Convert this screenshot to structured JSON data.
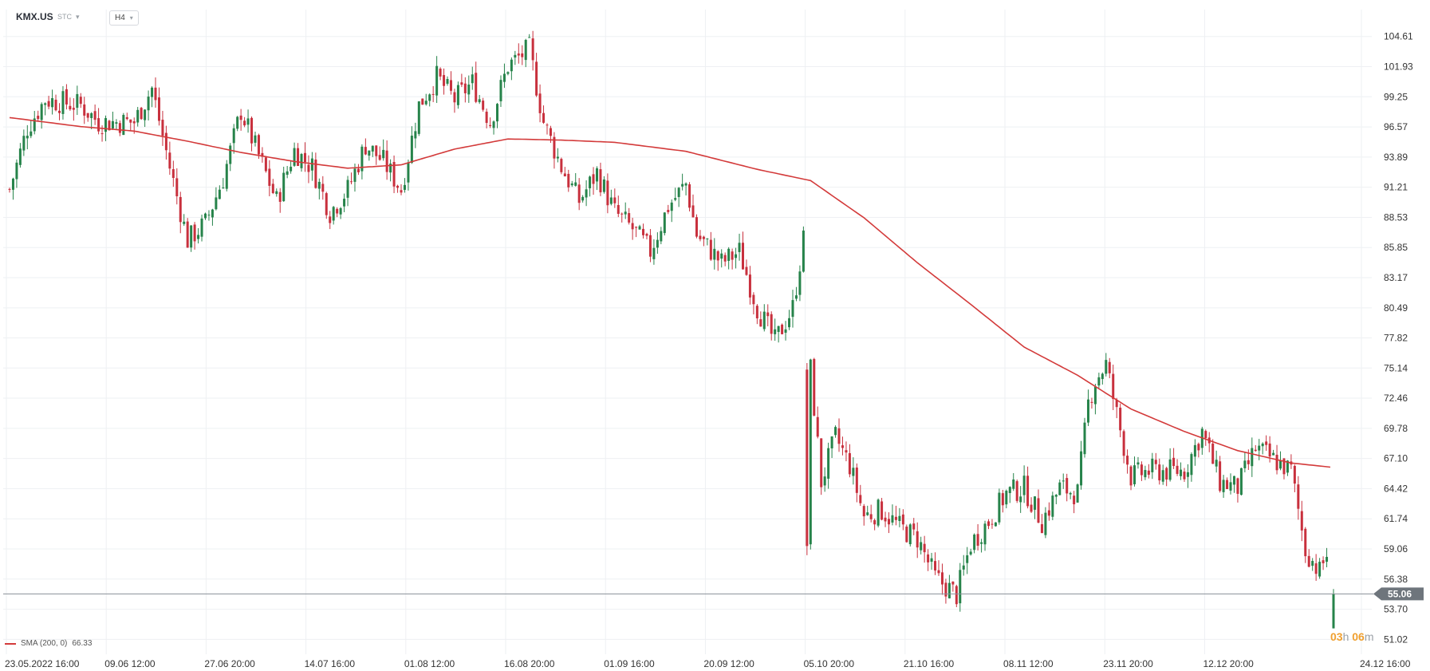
{
  "header": {
    "symbol": "KMX.US",
    "source": "STC",
    "timeframe": "H4"
  },
  "legend": {
    "label": "SMA (200, 0)",
    "value": "66.33"
  },
  "countdown": {
    "hours": "03",
    "h_unit": "h",
    "minutes": "06",
    "m_unit": "m"
  },
  "colors": {
    "up": "#26834a",
    "down": "#c8303d",
    "sma": "#d33a3a",
    "grid": "#eef0f3",
    "price_line": "#8a9097",
    "price_tag": "#6e757c"
  },
  "chart_data": {
    "type": "candlestick",
    "symbol": "KMX.US",
    "timeframe": "H4",
    "ylim": [
      49.7,
      107.0
    ],
    "y_ticks": [
      "104.61",
      "101.93",
      "99.25",
      "96.57",
      "93.89",
      "91.21",
      "88.53",
      "85.85",
      "83.17",
      "80.49",
      "77.82",
      "75.14",
      "72.46",
      "69.78",
      "67.10",
      "64.42",
      "61.74",
      "59.06",
      "56.38",
      "53.70",
      "51.02"
    ],
    "x_labels": [
      "23.05.2022 16:00",
      "09.06 12:00",
      "27.06 20:00",
      "14.07 16:00",
      "01.08 12:00",
      "16.08 20:00",
      "01.09 16:00",
      "20.09 12:00",
      "05.10 20:00",
      "21.10 16:00",
      "08.11 12:00",
      "23.11 20:00",
      "12.12 20:00",
      "24.12 16:00"
    ],
    "last_price": "55.06",
    "anchors": [
      [
        0,
        91
      ],
      [
        5,
        96.5
      ],
      [
        10,
        99
      ],
      [
        20,
        98.5
      ],
      [
        25,
        97
      ],
      [
        35,
        97
      ],
      [
        40,
        100
      ],
      [
        45,
        93
      ],
      [
        50,
        86.5
      ],
      [
        55,
        88
      ],
      [
        60,
        92
      ],
      [
        65,
        98
      ],
      [
        70,
        94
      ],
      [
        75,
        90
      ],
      [
        80,
        94.5
      ],
      [
        85,
        93
      ],
      [
        90,
        89
      ],
      [
        95,
        91
      ],
      [
        100,
        95
      ],
      [
        105,
        93.5
      ],
      [
        110,
        91
      ],
      [
        115,
        98.5
      ],
      [
        120,
        101
      ],
      [
        125,
        99
      ],
      [
        130,
        100.5
      ],
      [
        135,
        97
      ],
      [
        140,
        102
      ],
      [
        146,
        103.5
      ],
      [
        150,
        97
      ],
      [
        155,
        93
      ],
      [
        160,
        90
      ],
      [
        165,
        92.5
      ],
      [
        170,
        89
      ],
      [
        175,
        87.5
      ],
      [
        180,
        85.5
      ],
      [
        185,
        89.5
      ],
      [
        190,
        91.5
      ],
      [
        193,
        87
      ],
      [
        200,
        84.5
      ],
      [
        205,
        85.5
      ],
      [
        210,
        80.5
      ],
      [
        215,
        77.5
      ],
      [
        220,
        80.5
      ],
      [
        223,
        86.5
      ]
    ],
    "anchors_after_gap": [
      [
        225,
        75
      ],
      [
        228,
        65
      ],
      [
        232,
        69
      ],
      [
        236,
        66.5
      ],
      [
        240,
        62
      ],
      [
        245,
        62.5
      ],
      [
        250,
        61
      ],
      [
        255,
        60
      ],
      [
        260,
        56.5
      ],
      [
        266,
        55
      ],
      [
        270,
        59.5
      ],
      [
        275,
        61.5
      ],
      [
        280,
        64
      ],
      [
        285,
        64.5
      ],
      [
        290,
        61.5
      ],
      [
        295,
        64.5
      ],
      [
        300,
        64
      ],
      [
        303,
        72
      ],
      [
        305,
        74
      ],
      [
        308,
        75.5
      ],
      [
        311,
        71
      ],
      [
        315,
        65.5
      ],
      [
        320,
        66
      ],
      [
        325,
        66
      ],
      [
        330,
        66
      ],
      [
        335,
        69.5
      ],
      [
        340,
        65
      ],
      [
        345,
        64.5
      ],
      [
        350,
        68
      ],
      [
        355,
        67
      ],
      [
        360,
        66
      ],
      [
        364,
        59
      ],
      [
        368,
        57
      ],
      [
        371,
        59.5
      ]
    ],
    "sma_anchors": [
      [
        0,
        97.4
      ],
      [
        20,
        96.6
      ],
      [
        35,
        96.2
      ],
      [
        50,
        95.3
      ],
      [
        65,
        94.3
      ],
      [
        80,
        93.5
      ],
      [
        95,
        92.9
      ],
      [
        110,
        93.2
      ],
      [
        125,
        94.6
      ],
      [
        140,
        95.5
      ],
      [
        155,
        95.4
      ],
      [
        170,
        95.2
      ],
      [
        190,
        94.4
      ],
      [
        210,
        92.8
      ],
      [
        225,
        91.8
      ],
      [
        240,
        88.5
      ],
      [
        255,
        84.5
      ],
      [
        270,
        80.8
      ],
      [
        285,
        77
      ],
      [
        300,
        74.5
      ],
      [
        315,
        71.5
      ],
      [
        330,
        69.5
      ],
      [
        345,
        67.8
      ],
      [
        360,
        66.7
      ],
      [
        371,
        66.33
      ]
    ],
    "final_candle": {
      "open": 52.0,
      "close": 55.06,
      "high": 55.5,
      "low": 52.0
    }
  }
}
